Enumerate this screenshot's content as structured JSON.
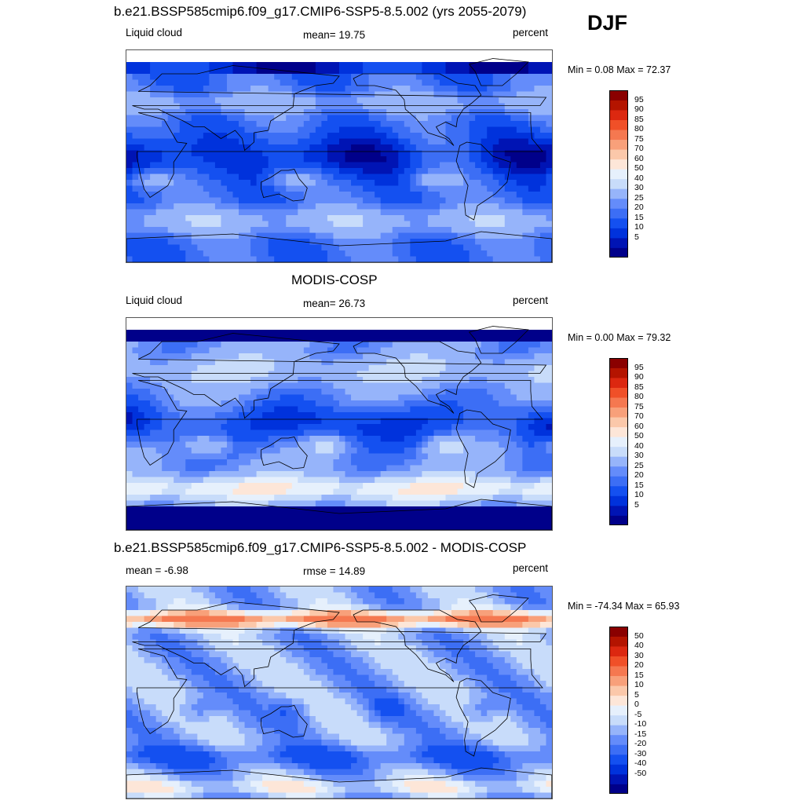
{
  "season": "DJF",
  "panels": [
    {
      "title": "b.e21.BSSP585cmip6.f09_g17.CMIP6-SSP5-8.5.002 (yrs 2055-2079)",
      "left_label": "Liquid cloud",
      "center_label": "mean=  19.75",
      "right_label": "percent",
      "minmax": "Min =   0.08 Max =  72.37",
      "palette": [
        "#00008a",
        "#0014b4",
        "#0032dc",
        "#1450f0",
        "#3c6ef5",
        "#648cfa",
        "#96b4fa",
        "#c8dcfa",
        "#e6f0fc",
        "#fde6d8",
        "#fbc8aa",
        "#f8a07a",
        "#f57850",
        "#f05028",
        "#dc2810",
        "#b41400",
        "#8a0000"
      ],
      "ticks": [
        "95",
        "90",
        "85",
        "80",
        "75",
        "70",
        "60",
        "50",
        "40",
        "30",
        "25",
        "20",
        "15",
        "10",
        "5"
      ]
    },
    {
      "title": "MODIS-COSP",
      "left_label": "Liquid cloud",
      "center_label": "mean=  26.73",
      "right_label": "percent",
      "minmax": "Min =   0.00 Max =  79.32",
      "palette": [
        "#00008a",
        "#0014b4",
        "#0032dc",
        "#1450f0",
        "#3c6ef5",
        "#648cfa",
        "#96b4fa",
        "#c8dcfa",
        "#e6f0fc",
        "#fde6d8",
        "#fbc8aa",
        "#f8a07a",
        "#f57850",
        "#f05028",
        "#dc2810",
        "#b41400",
        "#8a0000"
      ],
      "ticks": [
        "95",
        "90",
        "85",
        "80",
        "75",
        "70",
        "60",
        "50",
        "40",
        "30",
        "25",
        "20",
        "15",
        "10",
        "5"
      ]
    },
    {
      "title": "b.e21.BSSP585cmip6.f09_g17.CMIP6-SSP5-8.5.002 - MODIS-COSP",
      "left_label": "mean =  -6.98",
      "center_label": "rmse =  14.89",
      "right_label": "percent",
      "minmax": "Min = -74.34 Max =  65.93",
      "palette": [
        "#00008a",
        "#0014b4",
        "#0032dc",
        "#1450f0",
        "#3c6ef5",
        "#648cfa",
        "#96b4fa",
        "#c8dcfa",
        "#e6f0fc",
        "#fde6d8",
        "#fbc8aa",
        "#f8a07a",
        "#f57850",
        "#f05028",
        "#dc2810",
        "#b41400",
        "#8a0000"
      ],
      "ticks": [
        "50",
        "40",
        "30",
        "20",
        "15",
        "10",
        "5",
        "0",
        "-5",
        "-10",
        "-15",
        "-20",
        "-30",
        "-40",
        "-50"
      ]
    }
  ],
  "chart_data": [
    {
      "type": "heatmap",
      "title": "b.e21.BSSP585cmip6.f09_g17.CMIP6-SSP5-8.5.002 (yrs 2055-2079)",
      "variable": "Liquid cloud",
      "units": "percent",
      "mean": 19.75,
      "min": 0.08,
      "max": 72.37,
      "colorbar_levels": [
        5,
        10,
        15,
        20,
        25,
        30,
        40,
        50,
        60,
        70,
        75,
        80,
        85,
        90,
        95
      ],
      "projection": "global map",
      "grid": false
    },
    {
      "type": "heatmap",
      "title": "MODIS-COSP",
      "variable": "Liquid cloud",
      "units": "percent",
      "mean": 26.73,
      "min": 0.0,
      "max": 79.32,
      "colorbar_levels": [
        5,
        10,
        15,
        20,
        25,
        30,
        40,
        50,
        60,
        70,
        75,
        80,
        85,
        90,
        95
      ],
      "projection": "global map",
      "grid": false
    },
    {
      "type": "heatmap",
      "title": "b.e21.BSSP585cmip6.f09_g17.CMIP6-SSP5-8.5.002 - MODIS-COSP",
      "units": "percent",
      "mean": -6.98,
      "rmse": 14.89,
      "min": -74.34,
      "max": 65.93,
      "colorbar_levels": [
        -50,
        -40,
        -30,
        -20,
        -15,
        -10,
        -5,
        0,
        5,
        10,
        15,
        20,
        30,
        40,
        50
      ],
      "projection": "global map",
      "grid": false
    }
  ]
}
